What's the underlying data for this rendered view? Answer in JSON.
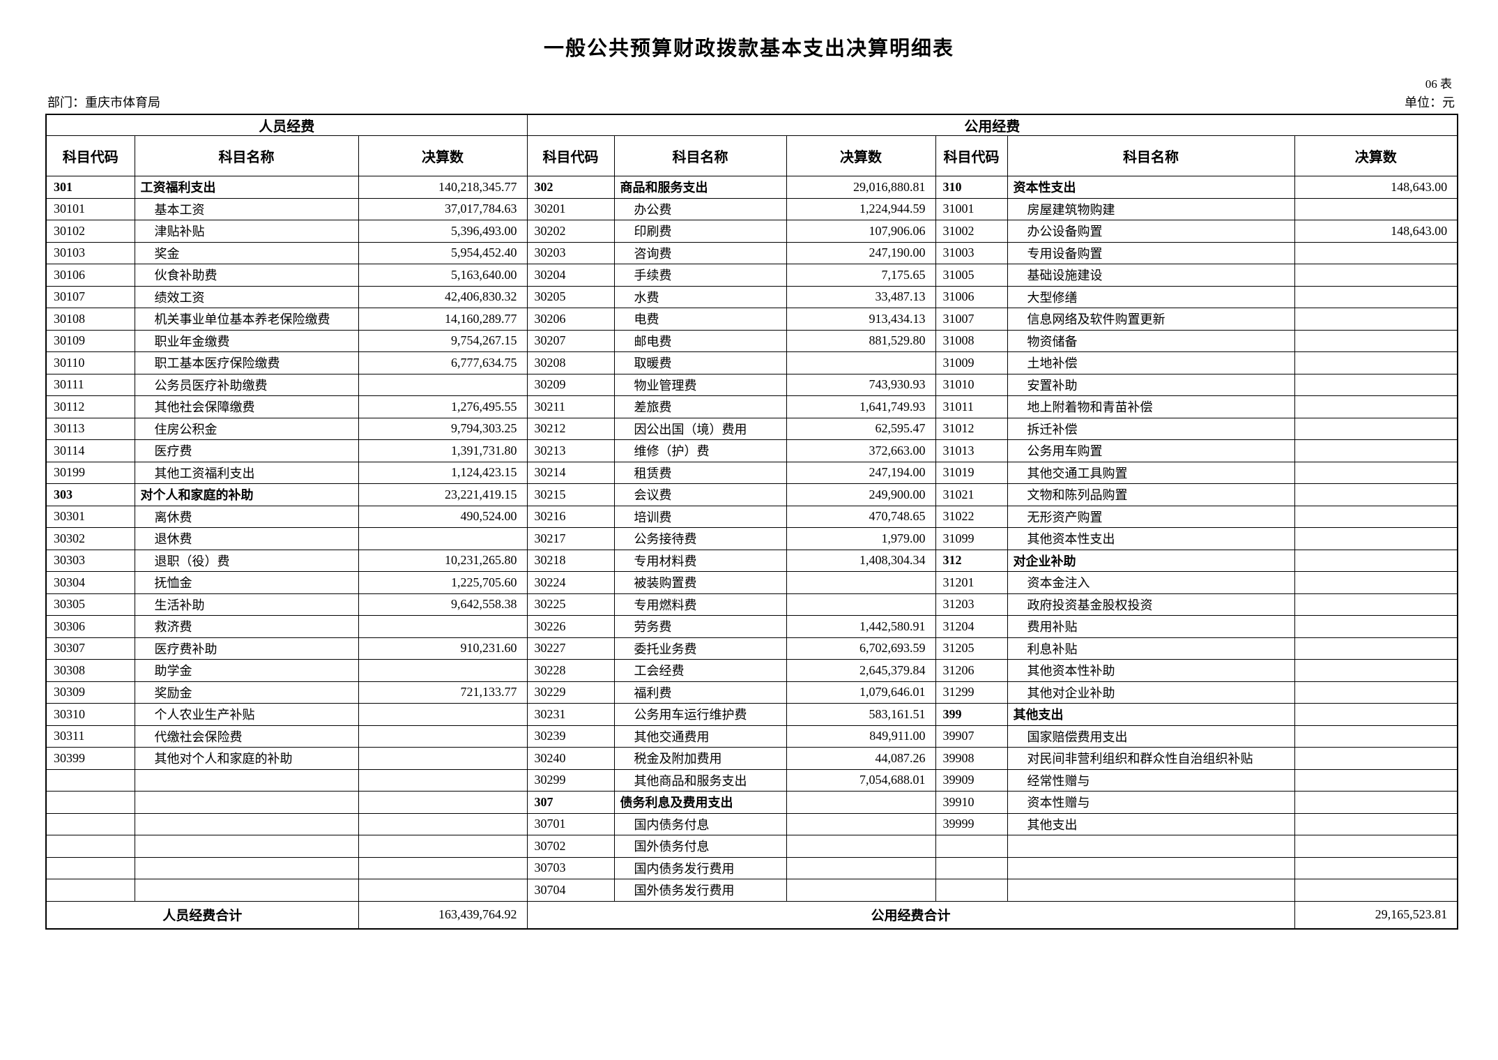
{
  "page": {
    "title": "一般公共预算财政拨款基本支出决算明细表",
    "form_number": "06 表",
    "department": "部门：重庆市体育局",
    "unit": "单位：元"
  },
  "table": {
    "group_headers": {
      "personnel": "人员经费",
      "public": "公用经费"
    },
    "column_headers": [
      "科目代码",
      "科目名称",
      "决算数"
    ],
    "left": {
      "empty_rows": 6,
      "rows": [
        {
          "code": "301",
          "name": "工资福利支出",
          "value": "140,218,345.77",
          "cat": true
        },
        {
          "code": "30101",
          "name": "基本工资",
          "value": "37,017,784.63"
        },
        {
          "code": "30102",
          "name": "津贴补贴",
          "value": "5,396,493.00"
        },
        {
          "code": "30103",
          "name": "奖金",
          "value": "5,954,452.40"
        },
        {
          "code": "30106",
          "name": "伙食补助费",
          "value": "5,163,640.00"
        },
        {
          "code": "30107",
          "name": "绩效工资",
          "value": "42,406,830.32"
        },
        {
          "code": "30108",
          "name": "机关事业单位基本养老保险缴费",
          "value": "14,160,289.77"
        },
        {
          "code": "30109",
          "name": "职业年金缴费",
          "value": "9,754,267.15"
        },
        {
          "code": "30110",
          "name": "职工基本医疗保险缴费",
          "value": "6,777,634.75"
        },
        {
          "code": "30111",
          "name": "公务员医疗补助缴费",
          "value": ""
        },
        {
          "code": "30112",
          "name": "其他社会保障缴费",
          "value": "1,276,495.55"
        },
        {
          "code": "30113",
          "name": "住房公积金",
          "value": "9,794,303.25"
        },
        {
          "code": "30114",
          "name": "医疗费",
          "value": "1,391,731.80"
        },
        {
          "code": "30199",
          "name": "其他工资福利支出",
          "value": "1,124,423.15"
        },
        {
          "code": "303",
          "name": "对个人和家庭的补助",
          "value": "23,221,419.15",
          "cat": true
        },
        {
          "code": "30301",
          "name": "离休费",
          "value": "490,524.00"
        },
        {
          "code": "30302",
          "name": "退休费",
          "value": ""
        },
        {
          "code": "30303",
          "name": "退职（役）费",
          "value": "10,231,265.80"
        },
        {
          "code": "30304",
          "name": "抚恤金",
          "value": "1,225,705.60"
        },
        {
          "code": "30305",
          "name": "生活补助",
          "value": "9,642,558.38"
        },
        {
          "code": "30306",
          "name": "救济费",
          "value": ""
        },
        {
          "code": "30307",
          "name": "医疗费补助",
          "value": "910,231.60"
        },
        {
          "code": "30308",
          "name": "助学金",
          "value": ""
        },
        {
          "code": "30309",
          "name": "奖励金",
          "value": "721,133.77"
        },
        {
          "code": "30310",
          "name": "个人农业生产补贴",
          "value": ""
        },
        {
          "code": "30311",
          "name": "代缴社会保险费",
          "value": ""
        },
        {
          "code": "30399",
          "name": "其他对个人和家庭的补助",
          "value": ""
        }
      ]
    },
    "middle": {
      "empty_rows": 0,
      "rows": [
        {
          "code": "302",
          "name": "商品和服务支出",
          "value": "29,016,880.81",
          "cat": true
        },
        {
          "code": "30201",
          "name": "办公费",
          "value": "1,224,944.59"
        },
        {
          "code": "30202",
          "name": "印刷费",
          "value": "107,906.06"
        },
        {
          "code": "30203",
          "name": "咨询费",
          "value": "247,190.00"
        },
        {
          "code": "30204",
          "name": "手续费",
          "value": "7,175.65"
        },
        {
          "code": "30205",
          "name": "水费",
          "value": "33,487.13"
        },
        {
          "code": "30206",
          "name": "电费",
          "value": "913,434.13"
        },
        {
          "code": "30207",
          "name": "邮电费",
          "value": "881,529.80"
        },
        {
          "code": "30208",
          "name": "取暖费",
          "value": ""
        },
        {
          "code": "30209",
          "name": "物业管理费",
          "value": "743,930.93"
        },
        {
          "code": "30211",
          "name": "差旅费",
          "value": "1,641,749.93"
        },
        {
          "code": "30212",
          "name": "因公出国（境）费用",
          "value": "62,595.47"
        },
        {
          "code": "30213",
          "name": "维修（护）费",
          "value": "372,663.00"
        },
        {
          "code": "30214",
          "name": "租赁费",
          "value": "247,194.00"
        },
        {
          "code": "30215",
          "name": "会议费",
          "value": "249,900.00"
        },
        {
          "code": "30216",
          "name": "培训费",
          "value": "470,748.65"
        },
        {
          "code": "30217",
          "name": "公务接待费",
          "value": "1,979.00"
        },
        {
          "code": "30218",
          "name": "专用材料费",
          "value": "1,408,304.34"
        },
        {
          "code": "30224",
          "name": "被装购置费",
          "value": ""
        },
        {
          "code": "30225",
          "name": "专用燃料费",
          "value": ""
        },
        {
          "code": "30226",
          "name": "劳务费",
          "value": "1,442,580.91"
        },
        {
          "code": "30227",
          "name": "委托业务费",
          "value": "6,702,693.59"
        },
        {
          "code": "30228",
          "name": "工会经费",
          "value": "2,645,379.84"
        },
        {
          "code": "30229",
          "name": "福利费",
          "value": "1,079,646.01"
        },
        {
          "code": "30231",
          "name": "公务用车运行维护费",
          "value": "583,161.51"
        },
        {
          "code": "30239",
          "name": "其他交通费用",
          "value": "849,911.00"
        },
        {
          "code": "30240",
          "name": "税金及附加费用",
          "value": "44,087.26"
        },
        {
          "code": "30299",
          "name": "其他商品和服务支出",
          "value": "7,054,688.01"
        },
        {
          "code": "307",
          "name": "债务利息及费用支出",
          "value": "",
          "cat": true
        },
        {
          "code": "30701",
          "name": "国内债务付息",
          "value": ""
        },
        {
          "code": "30702",
          "name": "国外债务付息",
          "value": ""
        },
        {
          "code": "30703",
          "name": "国内债务发行费用",
          "value": ""
        },
        {
          "code": "30704",
          "name": "国外债务发行费用",
          "value": ""
        }
      ]
    },
    "right": {
      "empty_rows": 3,
      "rows": [
        {
          "code": "310",
          "name": "资本性支出",
          "value": "148,643.00",
          "cat": true
        },
        {
          "code": "31001",
          "name": "房屋建筑物购建",
          "value": ""
        },
        {
          "code": "31002",
          "name": "办公设备购置",
          "value": "148,643.00"
        },
        {
          "code": "31003",
          "name": "专用设备购置",
          "value": ""
        },
        {
          "code": "31005",
          "name": "基础设施建设",
          "value": ""
        },
        {
          "code": "31006",
          "name": "大型修缮",
          "value": ""
        },
        {
          "code": "31007",
          "name": "信息网络及软件购置更新",
          "value": ""
        },
        {
          "code": "31008",
          "name": "物资储备",
          "value": ""
        },
        {
          "code": "31009",
          "name": "土地补偿",
          "value": ""
        },
        {
          "code": "31010",
          "name": "安置补助",
          "value": ""
        },
        {
          "code": "31011",
          "name": "地上附着物和青苗补偿",
          "value": ""
        },
        {
          "code": "31012",
          "name": "拆迁补偿",
          "value": ""
        },
        {
          "code": "31013",
          "name": "公务用车购置",
          "value": ""
        },
        {
          "code": "31019",
          "name": "其他交通工具购置",
          "value": ""
        },
        {
          "code": "31021",
          "name": "文物和陈列品购置",
          "value": ""
        },
        {
          "code": "31022",
          "name": "无形资产购置",
          "value": ""
        },
        {
          "code": "31099",
          "name": "其他资本性支出",
          "value": ""
        },
        {
          "code": "312",
          "name": "对企业补助",
          "value": "",
          "cat": true
        },
        {
          "code": "31201",
          "name": "资本金注入",
          "value": ""
        },
        {
          "code": "31203",
          "name": "政府投资基金股权投资",
          "value": ""
        },
        {
          "code": "31204",
          "name": "费用补贴",
          "value": ""
        },
        {
          "code": "31205",
          "name": "利息补贴",
          "value": ""
        },
        {
          "code": "31206",
          "name": "其他资本性补助",
          "value": ""
        },
        {
          "code": "31299",
          "name": "其他对企业补助",
          "value": ""
        },
        {
          "code": "399",
          "name": "其他支出",
          "value": "",
          "cat": true
        },
        {
          "code": "39907",
          "name": "国家赔偿费用支出",
          "value": ""
        },
        {
          "code": "39908",
          "name": "对民间非营利组织和群众性自治组织补贴",
          "value": ""
        },
        {
          "code": "39909",
          "name": "经常性赠与",
          "value": ""
        },
        {
          "code": "39910",
          "name": "资本性赠与",
          "value": ""
        },
        {
          "code": "39999",
          "name": "其他支出",
          "value": ""
        }
      ]
    },
    "totals": {
      "personnel_label": "人员经费合计",
      "personnel_value": "163,439,764.92",
      "public_label": "公用经费合计",
      "public_value": "29,165,523.81"
    }
  }
}
